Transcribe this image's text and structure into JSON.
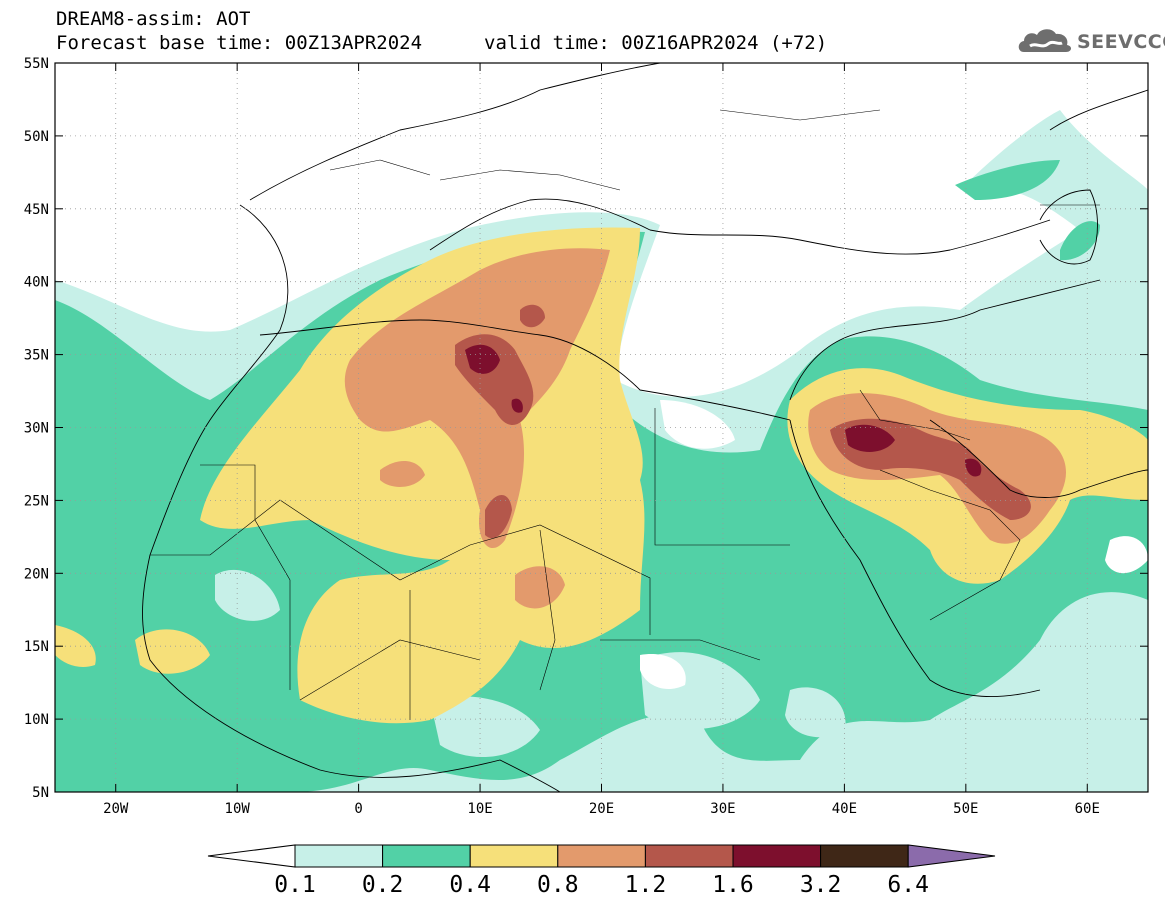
{
  "header": {
    "line1": "DREAM8-assim: AOT",
    "line2_left": "Forecast base time: 00Z13APR2024",
    "line2_right": "valid time: 00Z16APR2024 (+72)"
  },
  "logo": {
    "text": "SEEVCCC",
    "icon": "cloud-icon"
  },
  "map": {
    "lon_labels": [
      "20W",
      "10W",
      "0",
      "10E",
      "20E",
      "30E",
      "40E",
      "50E",
      "60E"
    ],
    "lat_labels": [
      "55N",
      "50N",
      "45N",
      "40N",
      "35N",
      "30N",
      "25N",
      "20N",
      "15N",
      "10N",
      "5N"
    ],
    "lon_range": [
      -25,
      65
    ],
    "lat_range": [
      5,
      55
    ]
  },
  "legend": {
    "labels": [
      "0.1",
      "0.2",
      "0.4",
      "0.8",
      "1.2",
      "1.6",
      "3.2",
      "6.4"
    ],
    "colors": [
      "#ffffff",
      "#c7f0e8",
      "#52d1a6",
      "#f6e07a",
      "#e39a6c",
      "#b4574b",
      "#7d0f2d",
      "#3f2717",
      "#8b6bab"
    ]
  }
}
